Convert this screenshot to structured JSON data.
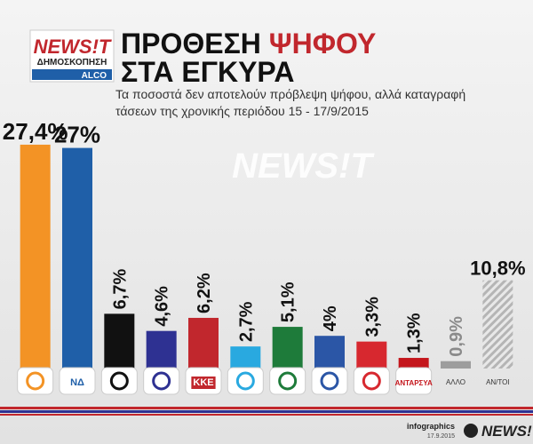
{
  "chart_data": {
    "type": "bar",
    "logo": "NEWS!T",
    "logo_subtitle": "ΔΗΜΟΣΚΟΠΗΣΗ",
    "pollster": "ALCO",
    "title_parts": [
      "ΠΡΟΘΕΣΗ",
      "ΨΗΦΟΥ",
      "ΣΤΑ ΕΓΚΥΡΑ"
    ],
    "subtitle_lines": [
      "Τα ποσοστά δεν αποτελούν πρόβλεψη ψήφου, αλλά καταγραφή",
      "τάσεων της χρονικής περιόδου 15 - 17/9/2015"
    ],
    "watermark": "NEWS!T",
    "categories": [
      null,
      null,
      null,
      null,
      null,
      null,
      null,
      null,
      null,
      null,
      "ΑΛΛΟ",
      "ΑΝ/ΤΟΙ"
    ],
    "logo_texts": [
      "ΝΔ",
      "ΚΚΕ",
      "ΑΝΤΑΡΣΥΑ"
    ],
    "values": [
      27.4,
      27,
      6.7,
      4.6,
      6.2,
      2.7,
      5.1,
      4,
      3.3,
      1.3,
      0.9,
      10.8
    ],
    "value_labels": [
      "27,4%",
      "27%",
      "6,7%",
      "4,6%",
      "6,2%",
      "2,7%",
      "5,1%",
      "4%",
      "3,3%",
      "1,3%",
      "0,9%",
      "10,8%"
    ],
    "colors": [
      "#f39325",
      "#1f5fa8",
      "#111111",
      "#2e3192",
      "#c1272d",
      "#29a9e0",
      "#1e7b3a",
      "#2b56a6",
      "#d7282f",
      "#c4161c",
      "#9d9d9d",
      "#b5b5b5"
    ],
    "patterns": [
      "solid",
      "solid",
      "solid",
      "solid",
      "solid",
      "solid",
      "solid",
      "solid",
      "solid",
      "solid",
      "solid",
      "hatch"
    ],
    "label_colors": [
      "#111111",
      "#111111",
      "#111111",
      "#111111",
      "#111111",
      "#111111",
      "#111111",
      "#111111",
      "#111111",
      "#111111",
      "#8a8a8a",
      "#111111"
    ],
    "ylim": [
      0,
      30
    ],
    "footer_label": "infographics",
    "footer_date": "17.9.2015",
    "footer_logo": "NEWS!T"
  }
}
